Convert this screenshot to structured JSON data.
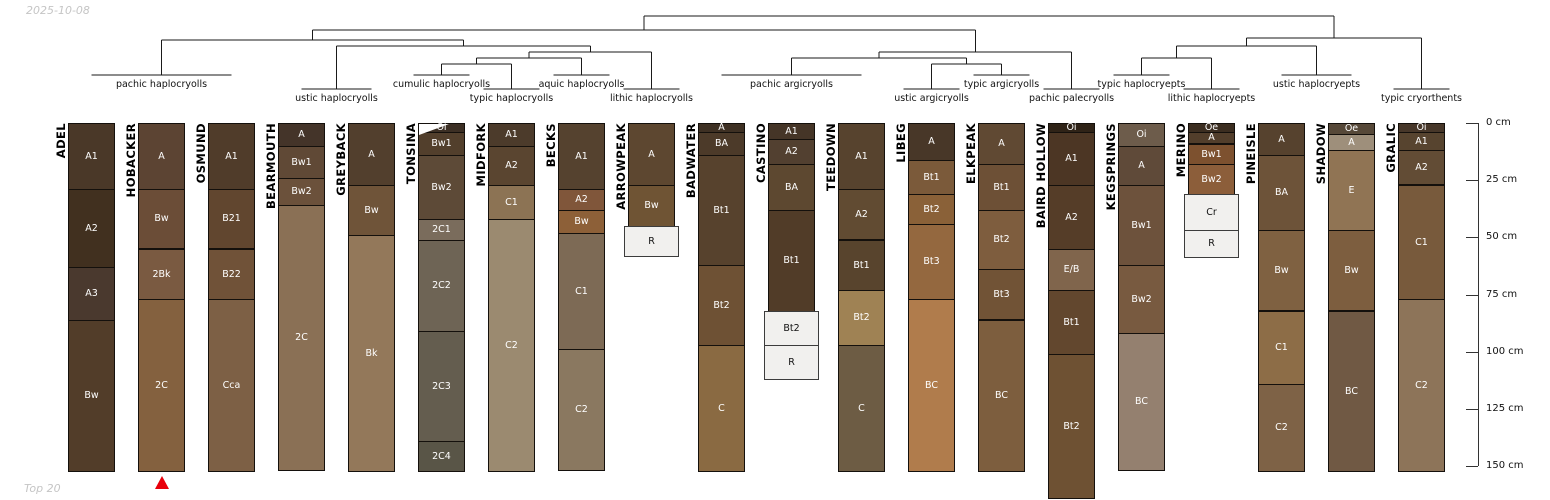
{
  "meta": {
    "date_label": "2025-10-08",
    "footer_label": "Top 20"
  },
  "chart_data": {
    "type": "bar",
    "depth_axis": {
      "unit": "cm",
      "tick_labels": [
        "0 cm",
        "25 cm",
        "50 cm",
        "75 cm",
        "100 cm",
        "125 cm",
        "150 cm"
      ]
    },
    "colors": {
      "marker_red": "#e8000b",
      "restricted_fill": "#f1f0ee",
      "line": "#1a1a1a"
    },
    "groups": [
      {
        "label": "pachic haplocryolls",
        "row": 1,
        "profile_indexes": [
          0,
          1,
          2
        ]
      },
      {
        "label": "ustic haplocryolls",
        "row": 2,
        "profile_indexes": [
          3,
          4
        ]
      },
      {
        "label": "cumulic haplocryolls",
        "row": 1,
        "profile_indexes": [
          5
        ]
      },
      {
        "label": "typic haplocryolls",
        "row": 2,
        "profile_indexes": [
          6
        ]
      },
      {
        "label": "aquic haplocryolls",
        "row": 1,
        "profile_indexes": [
          7
        ]
      },
      {
        "label": "lithic haplocryolls",
        "row": 2,
        "profile_indexes": [
          8
        ]
      },
      {
        "label": "pachic argicryolls",
        "row": 1,
        "profile_indexes": [
          9,
          10,
          11
        ]
      },
      {
        "label": "ustic argicryolls",
        "row": 2,
        "profile_indexes": [
          12
        ]
      },
      {
        "label": "typic argicryolls",
        "row": 1,
        "profile_indexes": [
          13
        ]
      },
      {
        "label": "pachic palecryolls",
        "row": 2,
        "profile_indexes": [
          14
        ]
      },
      {
        "label": "typic haplocryepts",
        "row": 1,
        "profile_indexes": [
          15
        ]
      },
      {
        "label": "lithic haplocryepts",
        "row": 2,
        "profile_indexes": [
          16
        ]
      },
      {
        "label": "ustic haplocryepts",
        "row": 1,
        "profile_indexes": [
          17,
          18
        ]
      },
      {
        "label": "typic cryorthents",
        "row": 2,
        "profile_indexes": [
          19
        ]
      }
    ],
    "dendrogram_joins": [
      {
        "a": "g2",
        "b": "g3",
        "y": 64
      },
      {
        "a": "j0",
        "b": "g4",
        "y": 58
      },
      {
        "a": "j1",
        "b": "g5",
        "y": 52
      },
      {
        "a": "g1",
        "b": "j2",
        "y": 46
      },
      {
        "a": "g0",
        "b": "j3",
        "y": 40
      },
      {
        "a": "g7",
        "b": "g8",
        "y": 64
      },
      {
        "a": "g6",
        "b": "j5",
        "y": 58
      },
      {
        "a": "j6",
        "b": "g9",
        "y": 52
      },
      {
        "a": "j4",
        "b": "j7",
        "y": 30
      },
      {
        "a": "g10",
        "b": "g11",
        "y": 58
      },
      {
        "a": "j9",
        "b": "g12",
        "y": 46
      },
      {
        "a": "j10",
        "b": "g13",
        "y": 38
      },
      {
        "a": "j8",
        "b": "j11",
        "y": 16
      }
    ],
    "profiles": [
      {
        "name": "ADEL",
        "horizons": [
          {
            "name": "A1",
            "top_cm": 0,
            "bottom_cm": 29,
            "color": "#4a3828"
          },
          {
            "name": "A2",
            "top_cm": 29,
            "bottom_cm": 63,
            "color": "#41301f"
          },
          {
            "name": "A3",
            "top_cm": 63,
            "bottom_cm": 86,
            "color": "#4a392e"
          },
          {
            "name": "Bw",
            "top_cm": 86,
            "bottom_cm": 152,
            "color": "#523d29"
          }
        ]
      },
      {
        "name": "HOBACKER",
        "marker": "red-triangle",
        "horizons": [
          {
            "name": "A",
            "top_cm": 0,
            "bottom_cm": 29,
            "color": "#5c4433"
          },
          {
            "name": "Bw",
            "top_cm": 29,
            "bottom_cm": 55,
            "color": "#6b4d37"
          },
          {
            "name": "2Bk",
            "top_cm": 55,
            "bottom_cm": 77,
            "color": "#7a5a41"
          },
          {
            "name": "2C",
            "top_cm": 77,
            "bottom_cm": 152,
            "color": "#84613f"
          }
        ]
      },
      {
        "name": "OSMUND",
        "horizons": [
          {
            "name": "A1",
            "top_cm": 0,
            "bottom_cm": 29,
            "color": "#503c2a"
          },
          {
            "name": "B21",
            "top_cm": 29,
            "bottom_cm": 55,
            "color": "#61462f"
          },
          {
            "name": "B22",
            "top_cm": 55,
            "bottom_cm": 77,
            "color": "#705238"
          },
          {
            "name": "Cca",
            "top_cm": 77,
            "bottom_cm": 152,
            "color": "#7d6045"
          }
        ]
      },
      {
        "name": "BEARMOUTH",
        "horizons": [
          {
            "name": "A",
            "top_cm": 0,
            "bottom_cm": 10,
            "color": "#443429"
          },
          {
            "name": "Bw1",
            "top_cm": 10,
            "bottom_cm": 24,
            "color": "#604936"
          },
          {
            "name": "Bw2",
            "top_cm": 24,
            "bottom_cm": 36,
            "color": "#6b513b"
          },
          {
            "name": "2C",
            "top_cm": 36,
            "bottom_cm": 152,
            "color": "#8a7055"
          }
        ]
      },
      {
        "name": "GREYBACK",
        "horizons": [
          {
            "name": "A",
            "top_cm": 0,
            "bottom_cm": 27,
            "color": "#523f2d"
          },
          {
            "name": "Bw",
            "top_cm": 27,
            "bottom_cm": 49,
            "color": "#6f5439"
          },
          {
            "name": "Bk",
            "top_cm": 49,
            "bottom_cm": 152,
            "color": "#93785a"
          }
        ]
      },
      {
        "name": "TONSINA",
        "surface_wedge": true,
        "horizons": [
          {
            "name": "Oi",
            "top_cm": 0,
            "bottom_cm": 4,
            "color": "#3c2f24"
          },
          {
            "name": "Bw1",
            "top_cm": 4,
            "bottom_cm": 14,
            "color": "#523f2c"
          },
          {
            "name": "Bw2",
            "top_cm": 14,
            "bottom_cm": 42,
            "color": "#5d4a37"
          },
          {
            "name": "2C1",
            "top_cm": 42,
            "bottom_cm": 51,
            "color": "#7a6c5c"
          },
          {
            "name": "2C2",
            "top_cm": 51,
            "bottom_cm": 91,
            "color": "#6e6455"
          },
          {
            "name": "2C3",
            "top_cm": 91,
            "bottom_cm": 139,
            "color": "#645d4f"
          },
          {
            "name": "2C4",
            "top_cm": 139,
            "bottom_cm": 152,
            "color": "#595547"
          }
        ]
      },
      {
        "name": "MIDFORK",
        "horizons": [
          {
            "name": "A1",
            "top_cm": 0,
            "bottom_cm": 10,
            "color": "#4c3b2b"
          },
          {
            "name": "A2",
            "top_cm": 10,
            "bottom_cm": 27,
            "color": "#5a4530"
          },
          {
            "name": "C1",
            "top_cm": 27,
            "bottom_cm": 42,
            "color": "#8c7354"
          },
          {
            "name": "C2",
            "top_cm": 42,
            "bottom_cm": 152,
            "color": "#9b8a70"
          }
        ]
      },
      {
        "name": "BECKS",
        "horizons": [
          {
            "name": "A1",
            "top_cm": 0,
            "bottom_cm": 29,
            "color": "#55422f"
          },
          {
            "name": "A2",
            "top_cm": 29,
            "bottom_cm": 38,
            "color": "#80563a"
          },
          {
            "name": "Bw",
            "top_cm": 38,
            "bottom_cm": 48,
            "color": "#8d6038"
          },
          {
            "name": "C1",
            "top_cm": 48,
            "bottom_cm": 99,
            "color": "#7d6a55"
          },
          {
            "name": "C2",
            "top_cm": 99,
            "bottom_cm": 152,
            "color": "#8a7860"
          }
        ]
      },
      {
        "name": "ARROWPEAK",
        "horizons": [
          {
            "name": "A",
            "top_cm": 0,
            "bottom_cm": 27,
            "color": "#5d4730"
          },
          {
            "name": "Bw",
            "top_cm": 27,
            "bottom_cm": 45,
            "color": "#6f5434"
          },
          {
            "name": "R",
            "top_cm": 45,
            "bottom_cm": 58,
            "restricted": true
          }
        ]
      },
      {
        "name": "BADWATER",
        "horizons": [
          {
            "name": "A",
            "top_cm": 0,
            "bottom_cm": 4,
            "color": "#3e3023"
          },
          {
            "name": "BA",
            "top_cm": 4,
            "bottom_cm": 14,
            "color": "#4c3a29"
          },
          {
            "name": "Bt1",
            "top_cm": 14,
            "bottom_cm": 62,
            "color": "#57422d"
          },
          {
            "name": "Bt2",
            "top_cm": 62,
            "bottom_cm": 97,
            "color": "#6e5134"
          },
          {
            "name": "C",
            "top_cm": 97,
            "bottom_cm": 152,
            "color": "#8a6a42"
          }
        ]
      },
      {
        "name": "CASTINO",
        "horizons": [
          {
            "name": "A1",
            "top_cm": 0,
            "bottom_cm": 7,
            "color": "#453527"
          },
          {
            "name": "A2",
            "top_cm": 7,
            "bottom_cm": 18,
            "color": "#524030"
          },
          {
            "name": "BA",
            "top_cm": 18,
            "bottom_cm": 38,
            "color": "#5d4830"
          },
          {
            "name": "Bt1",
            "top_cm": 38,
            "bottom_cm": 82,
            "color": "#513c28"
          },
          {
            "name": "Bt2",
            "top_cm": 82,
            "bottom_cm": 97,
            "restricted": true
          },
          {
            "name": "R",
            "top_cm": 97,
            "bottom_cm": 112,
            "restricted": true
          }
        ]
      },
      {
        "name": "TEEDOWN",
        "horizons": [
          {
            "name": "A1",
            "top_cm": 0,
            "bottom_cm": 29,
            "color": "#57432e"
          },
          {
            "name": "A2",
            "top_cm": 29,
            "bottom_cm": 51,
            "color": "#614b32"
          },
          {
            "name": "Bt1",
            "top_cm": 51,
            "bottom_cm": 73,
            "color": "#58442d"
          },
          {
            "name": "Bt2",
            "top_cm": 73,
            "bottom_cm": 97,
            "color": "#9f8254"
          },
          {
            "name": "C",
            "top_cm": 97,
            "bottom_cm": 152,
            "color": "#6d5c44"
          }
        ]
      },
      {
        "name": "LIBEG",
        "horizons": [
          {
            "name": "A",
            "top_cm": 0,
            "bottom_cm": 16,
            "color": "#483728"
          },
          {
            "name": "Bt1",
            "top_cm": 16,
            "bottom_cm": 31,
            "color": "#7b5a3a"
          },
          {
            "name": "Bt2",
            "top_cm": 31,
            "bottom_cm": 44,
            "color": "#8a6138"
          },
          {
            "name": "Bt3",
            "top_cm": 44,
            "bottom_cm": 77,
            "color": "#94683f"
          },
          {
            "name": "BC",
            "top_cm": 77,
            "bottom_cm": 152,
            "color": "#b07c4c"
          }
        ]
      },
      {
        "name": "ELKPEAK",
        "horizons": [
          {
            "name": "A",
            "top_cm": 0,
            "bottom_cm": 18,
            "color": "#604933"
          },
          {
            "name": "Bt1",
            "top_cm": 18,
            "bottom_cm": 38,
            "color": "#6d5036"
          },
          {
            "name": "Bt2",
            "top_cm": 38,
            "bottom_cm": 64,
            "color": "#7e5d3e"
          },
          {
            "name": "Bt3",
            "top_cm": 64,
            "bottom_cm": 86,
            "color": "#715336"
          },
          {
            "name": "BC",
            "top_cm": 86,
            "bottom_cm": 152,
            "color": "#7d5e3e"
          }
        ]
      },
      {
        "name": "BAIRD HOLLOW",
        "horizons": [
          {
            "name": "Oi",
            "top_cm": 0,
            "bottom_cm": 4,
            "color": "#2f2317"
          },
          {
            "name": "A1",
            "top_cm": 4,
            "bottom_cm": 27,
            "color": "#4c3624"
          },
          {
            "name": "A2",
            "top_cm": 27,
            "bottom_cm": 55,
            "color": "#553d28"
          },
          {
            "name": "E/B",
            "top_cm": 55,
            "bottom_cm": 73,
            "color": "#80654c"
          },
          {
            "name": "Bt1",
            "top_cm": 73,
            "bottom_cm": 101,
            "color": "#62472e"
          },
          {
            "name": "Bt2",
            "top_cm": 101,
            "bottom_cm": 164,
            "color": "#6e5133"
          }
        ]
      },
      {
        "name": "KEGSPRINGS",
        "horizons": [
          {
            "name": "Oi",
            "top_cm": 0,
            "bottom_cm": 10,
            "color": "#6d5c4b"
          },
          {
            "name": "A",
            "top_cm": 10,
            "bottom_cm": 27,
            "color": "#5f4a39"
          },
          {
            "name": "Bw1",
            "top_cm": 27,
            "bottom_cm": 62,
            "color": "#6d523c"
          },
          {
            "name": "Bw2",
            "top_cm": 62,
            "bottom_cm": 92,
            "color": "#785a40"
          },
          {
            "name": "BC",
            "top_cm": 92,
            "bottom_cm": 152,
            "color": "#94806f"
          }
        ]
      },
      {
        "name": "MERINO",
        "horizons": [
          {
            "name": "Oe",
            "top_cm": 0,
            "bottom_cm": 4,
            "color": "#3b2d20"
          },
          {
            "name": "A",
            "top_cm": 4,
            "bottom_cm": 9,
            "color": "#523e2b"
          },
          {
            "name": "Bw1",
            "top_cm": 9,
            "bottom_cm": 18,
            "color": "#7d512f"
          },
          {
            "name": "Bw2",
            "top_cm": 18,
            "bottom_cm": 31,
            "color": "#8c5e3a"
          },
          {
            "name": "Cr",
            "top_cm": 31,
            "bottom_cm": 47,
            "restricted": true
          },
          {
            "name": "R",
            "top_cm": 47,
            "bottom_cm": 59,
            "restricted": true
          }
        ]
      },
      {
        "name": "PINEISLE",
        "horizons": [
          {
            "name": "A",
            "top_cm": 0,
            "bottom_cm": 14,
            "color": "#56422e"
          },
          {
            "name": "BA",
            "top_cm": 14,
            "bottom_cm": 47,
            "color": "#6d5339"
          },
          {
            "name": "Bw",
            "top_cm": 47,
            "bottom_cm": 82,
            "color": "#7f6141"
          },
          {
            "name": "C1",
            "top_cm": 82,
            "bottom_cm": 114,
            "color": "#8d6d47"
          },
          {
            "name": "C2",
            "top_cm": 114,
            "bottom_cm": 152,
            "color": "#7e6246"
          }
        ]
      },
      {
        "name": "SHADOW",
        "horizons": [
          {
            "name": "Oe",
            "top_cm": 0,
            "bottom_cm": 5,
            "color": "#564838"
          },
          {
            "name": "A",
            "top_cm": 5,
            "bottom_cm": 12,
            "color": "#9e8f7b"
          },
          {
            "name": "E",
            "top_cm": 12,
            "bottom_cm": 47,
            "color": "#907454"
          },
          {
            "name": "Bw",
            "top_cm": 47,
            "bottom_cm": 82,
            "color": "#7d5e3f"
          },
          {
            "name": "BC",
            "top_cm": 82,
            "bottom_cm": 152,
            "color": "#705944"
          }
        ]
      },
      {
        "name": "GRALIC",
        "horizons": [
          {
            "name": "Oi",
            "top_cm": 0,
            "bottom_cm": 4,
            "color": "#473729"
          },
          {
            "name": "A1",
            "top_cm": 4,
            "bottom_cm": 12,
            "color": "#57442f"
          },
          {
            "name": "A2",
            "top_cm": 12,
            "bottom_cm": 27,
            "color": "#624c35"
          },
          {
            "name": "C1",
            "top_cm": 27,
            "bottom_cm": 77,
            "color": "#785a3c"
          },
          {
            "name": "C2",
            "top_cm": 77,
            "bottom_cm": 152,
            "color": "#8d7459"
          }
        ]
      }
    ]
  }
}
